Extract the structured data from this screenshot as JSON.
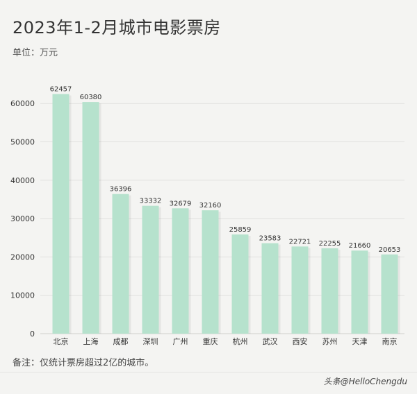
{
  "header": {
    "title": "2023年1-2月城市电影票房",
    "unit": "单位：万元"
  },
  "footer": {
    "note": "备注：仅统计票房超过2亿的城市。",
    "watermark": "头条@HelloChengdu"
  },
  "colors": {
    "bar": "#b6e2cd",
    "background": "#f4f4f2",
    "grid": "#e0e0de"
  },
  "chart_data": {
    "type": "bar",
    "title": "2023年1-2月城市电影票房",
    "ylabel": "单位：万元",
    "xlabel": "",
    "categories": [
      "北京",
      "上海",
      "成都",
      "深圳",
      "广州",
      "重庆",
      "杭州",
      "武汉",
      "西安",
      "苏州",
      "天津",
      "南京"
    ],
    "values": [
      62457,
      60380,
      36396,
      33332,
      32679,
      32160,
      25859,
      23583,
      22721,
      22255,
      21660,
      20653
    ],
    "ylim": [
      0,
      60000
    ],
    "yticks": [
      0,
      10000,
      20000,
      30000,
      40000,
      50000,
      60000
    ],
    "grid": true,
    "legend": "none"
  }
}
